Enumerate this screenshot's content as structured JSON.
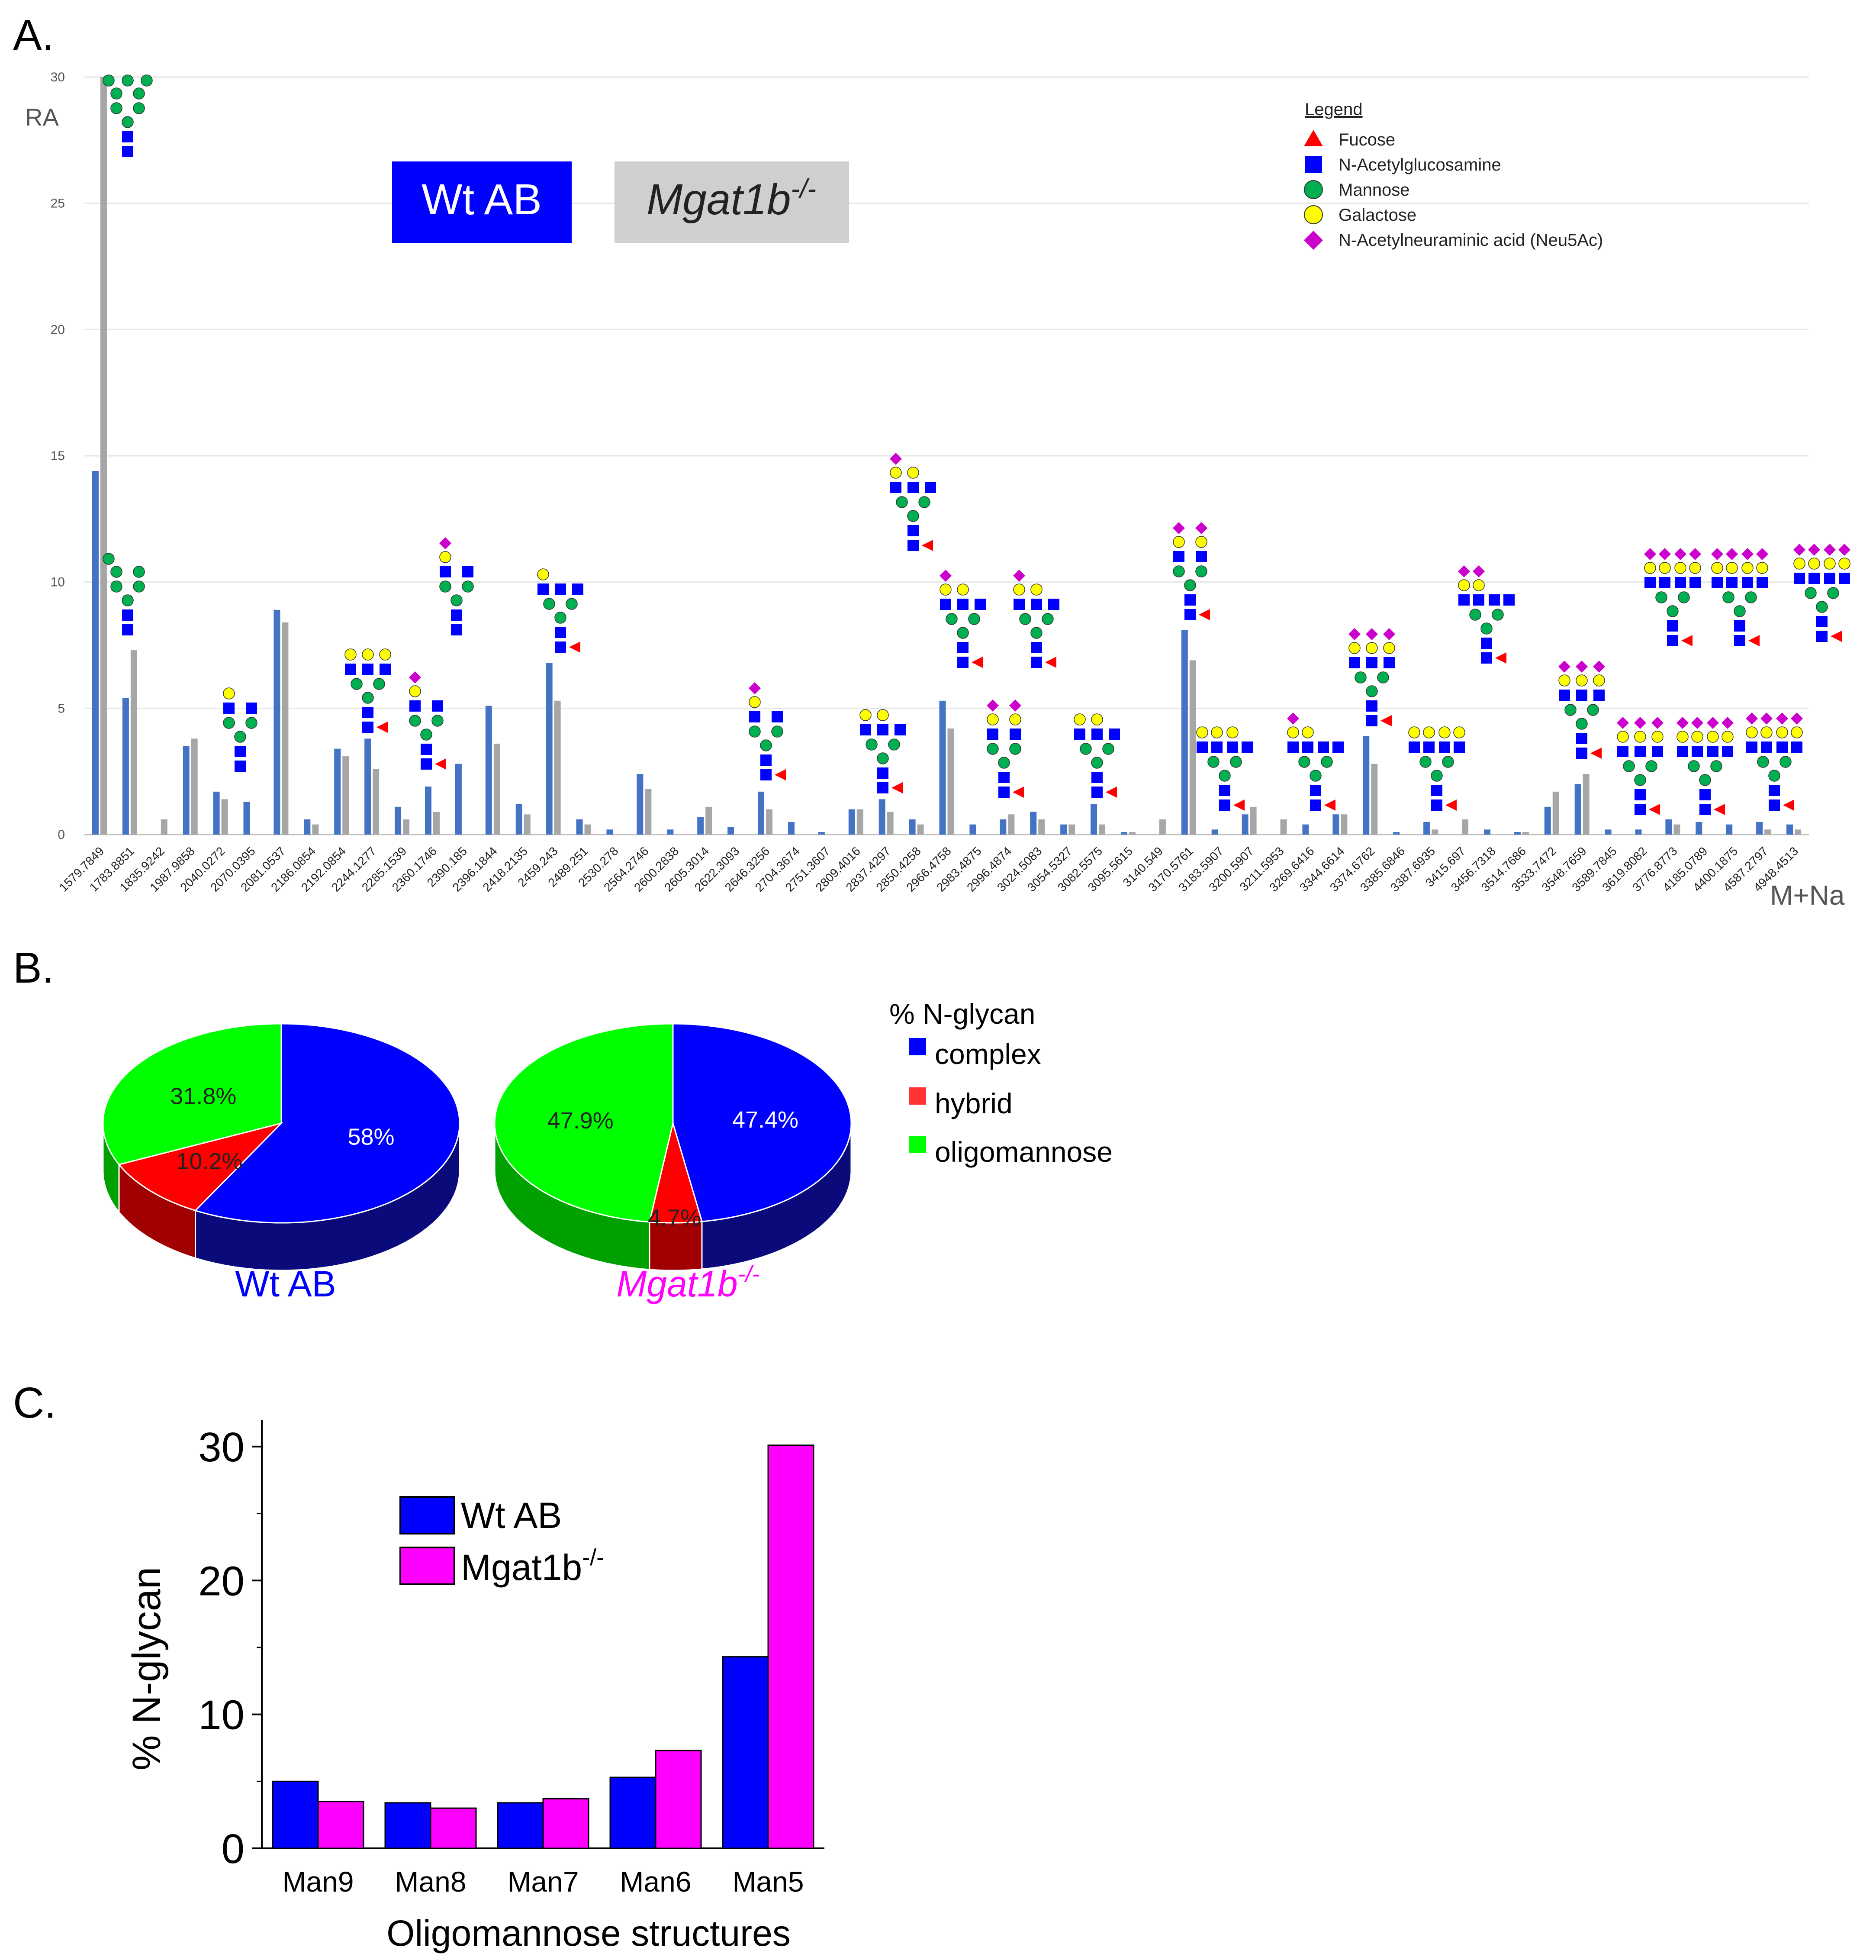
{
  "panels": {
    "a": "A.",
    "b": "B.",
    "c": "C."
  },
  "colors": {
    "wt": "#4472C4",
    "mutant": "#A6A6A6",
    "glcnac": "#0000FF",
    "mannose": "#00B050",
    "galactose": "#FFFF00",
    "fucose": "#FF0000",
    "neu5ac": "#CC00CC",
    "complex": "#0000FF",
    "hybrid": "#FF0000",
    "oligomannose": "#00FF00",
    "mgat1b": "#FF00FF"
  },
  "chart_data": [
    {
      "type": "bar",
      "ylabel": "RA",
      "xlabel": "M+Na",
      "ylim": [
        0,
        30
      ],
      "yticks": [
        0,
        5,
        10,
        15,
        20,
        25,
        30
      ],
      "grid": true,
      "series_labels": {
        "wt": "Wt AB",
        "mutant": "Mgat1b-/-"
      },
      "series_label_parts": {
        "wt": "Wt AB",
        "mutant_base": "Mgat1b",
        "mutant_sup": "-/-"
      },
      "legend": {
        "title": "Legend",
        "items": [
          {
            "label": "Fucose",
            "shape": "triangle",
            "color": "#FF0000"
          },
          {
            "label": "N-Acetylglucosamine",
            "shape": "square",
            "color": "#0000FF"
          },
          {
            "label": "Mannose",
            "shape": "circle",
            "color": "#00B050"
          },
          {
            "label": "Galactose",
            "shape": "circle",
            "color": "#FFFF00"
          },
          {
            "label": "N-Acetylneuraminic acid (Neu5Ac)",
            "shape": "diamond",
            "color": "#CC00CC"
          }
        ]
      },
      "categories": [
        "1579.7849",
        "1783.8851",
        "1835.9242",
        "1987.9858",
        "2040.0272",
        "2070.0395",
        "2081.0537",
        "2186.0854",
        "2192.0854",
        "2244.1277",
        "2285.1539",
        "2360.1746",
        "2390.185",
        "2396.1844",
        "2418.2135",
        "2459.243",
        "2489.251",
        "2530.278",
        "2564.2746",
        "2600.2838",
        "2605.3014",
        "2622.3093",
        "2646.3256",
        "2704.3674",
        "2751.3607",
        "2809.4016",
        "2837.4297",
        "2850.4258",
        "2966.4758",
        "2983.4875",
        "2996.4874",
        "3024.5083",
        "3054.5327",
        "3082.5575",
        "3095.5615",
        "3140.549",
        "3170.5761",
        "3183.5907",
        "3200.5907",
        "3211.5953",
        "3269.6416",
        "3344.6614",
        "3374.6762",
        "3385.6846",
        "3387.6935",
        "3415.697",
        "3456.7318",
        "3514.7686",
        "3533.7472",
        "3548.7659",
        "3589.7845",
        "3619.8082",
        "3776.8773",
        "4185.0789",
        "4400.1875",
        "4587.2797",
        "4948.4513"
      ],
      "series": [
        {
          "name": "Wt AB",
          "values": [
            14.4,
            5.4,
            0,
            3.5,
            1.7,
            1.3,
            8.9,
            0.6,
            3.4,
            3.8,
            1.1,
            1.9,
            2.8,
            5.1,
            1.2,
            6.8,
            0.6,
            0.2,
            2.4,
            0.2,
            0.7,
            0.3,
            1.7,
            0.5,
            0.1,
            1.0,
            1.4,
            0.6,
            5.3,
            0.4,
            0.6,
            0.9,
            0.4,
            1.2,
            0.1,
            0,
            8.1,
            0.2,
            0.8,
            0,
            0.4,
            0.8,
            3.9,
            0.1,
            0.5,
            0,
            0.2,
            0.1,
            1.1,
            2.0,
            0.2,
            0.2,
            0.6,
            0.5,
            0.4,
            0.5,
            0.4
          ]
        },
        {
          "name": "Mgat1b-/-",
          "values": [
            30.0,
            7.3,
            0.6,
            3.8,
            1.4,
            0,
            8.4,
            0.4,
            3.1,
            2.6,
            0.6,
            0.9,
            0,
            3.6,
            0.8,
            5.3,
            0.4,
            0,
            1.8,
            0,
            1.1,
            0,
            1.0,
            0,
            0,
            1.0,
            0.9,
            0.4,
            4.2,
            0,
            0.8,
            0.6,
            0.4,
            0.4,
            0.1,
            0.6,
            6.9,
            0,
            1.1,
            0.6,
            0,
            0.8,
            2.8,
            0,
            0.2,
            0.6,
            0,
            0.1,
            1.7,
            2.4,
            0,
            0,
            0.4,
            0,
            0,
            0.2,
            0.2
          ]
        }
      ]
    },
    {
      "type": "pie",
      "title": "% N-glycan",
      "categories": [
        "complex",
        "hybrid",
        "oligomannose"
      ],
      "pies": [
        {
          "name": "Wt AB",
          "name_parts": {
            "base": "Wt AB",
            "sup": ""
          },
          "values": [
            58,
            10.2,
            31.8
          ],
          "labels": [
            "58%",
            "10.2%",
            "31.8%"
          ]
        },
        {
          "name": "Mgat1b-/-",
          "name_parts": {
            "base": "Mgat1b",
            "sup": "-/-"
          },
          "values": [
            47.4,
            4.7,
            47.9
          ],
          "labels": [
            "47.4%",
            "4.7%",
            "47.9%"
          ]
        }
      ]
    },
    {
      "type": "bar",
      "ylabel": "% N-glycan",
      "xlabel": "Oligomannose structures",
      "ylim": [
        0,
        32
      ],
      "yticks": [
        0,
        10,
        20,
        30
      ],
      "categories": [
        "Man9",
        "Man8",
        "Man7",
        "Man6",
        "Man5"
      ],
      "series": [
        {
          "name": "Wt AB",
          "name_parts": {
            "base": "Wt AB",
            "sup": ""
          },
          "values": [
            5.0,
            3.4,
            3.4,
            5.3,
            14.3
          ]
        },
        {
          "name": "Mgat1b-/-",
          "name_parts": {
            "base": "Mgat1b",
            "sup": "-/-"
          },
          "values": [
            3.5,
            3.0,
            3.7,
            7.3,
            30.1
          ]
        }
      ]
    }
  ]
}
